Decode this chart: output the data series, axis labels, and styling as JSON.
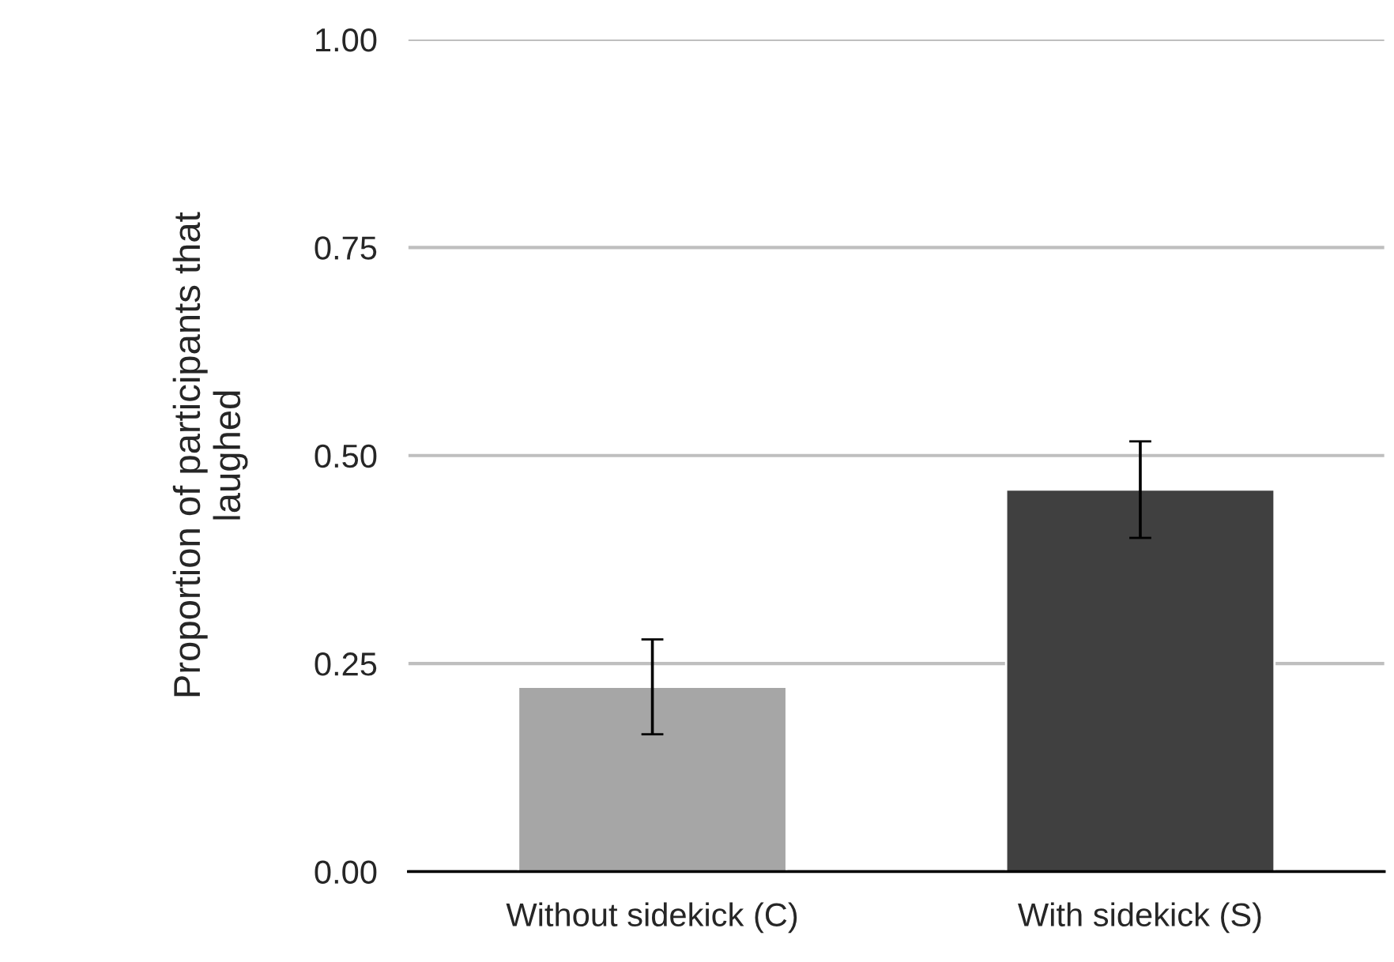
{
  "chart_data": {
    "type": "bar",
    "ylabel": "Proportion of participants that\nlaughed",
    "categories": [
      "Without sidekick (C)",
      "With sidekick (S)"
    ],
    "values": [
      0.222,
      0.459
    ],
    "colors": [
      "#a6a6a6",
      "#404040"
    ],
    "errors": [
      0.057,
      0.058
    ],
    "ylim": [
      0,
      1
    ],
    "yticks": [
      {
        "value": 0,
        "label": "0.00"
      },
      {
        "value": 0.25,
        "label": "0.25"
      },
      {
        "value": 0.5,
        "label": "0.50"
      },
      {
        "value": 0.75,
        "label": "0.75"
      },
      {
        "value": 1,
        "label": "1.00"
      }
    ],
    "grid": "y",
    "legend": false
  }
}
